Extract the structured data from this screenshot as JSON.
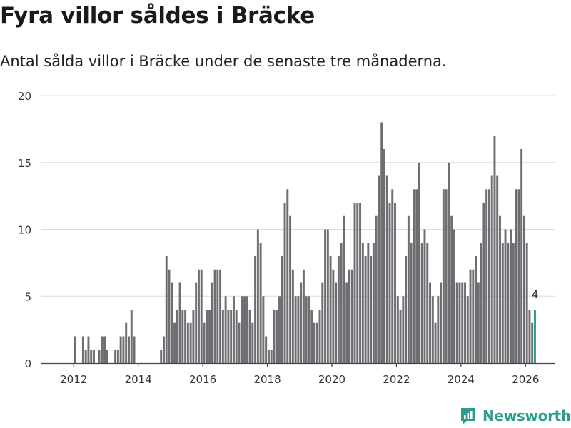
{
  "header": {
    "title": "Fyra villor såldes i Bräcke",
    "subtitle": "Antal sålda villor i Bräcke under de senaste tre månaderna."
  },
  "brand": {
    "name": "Newsworthy",
    "icon": "newsworthy-logo-icon",
    "color": "#2a9d8f"
  },
  "chart_data": {
    "type": "bar",
    "title": "Antal sålda villor i Bräcke under de senaste tre månaderna.",
    "xlabel": "",
    "ylabel": "",
    "ylim": [
      0,
      20
    ],
    "xlim": [
      2011.0,
      2026.9
    ],
    "yticks": [
      0,
      5,
      10,
      15,
      20
    ],
    "xticks": [
      2012,
      2014,
      2016,
      2018,
      2020,
      2022,
      2024,
      2026
    ],
    "bar_color": "#6d6d72",
    "highlight_color": "#2a9d8f",
    "grid": true,
    "series": [
      {
        "name": "Antal sålda villor",
        "start_year": 2012,
        "start_month": 1,
        "values": [
          2,
          0,
          0,
          2,
          1,
          2,
          1,
          1,
          0,
          1,
          2,
          2,
          1,
          0,
          0,
          1,
          1,
          2,
          2,
          3,
          2,
          4,
          2,
          0,
          0,
          0,
          0,
          0,
          0,
          0,
          0,
          0,
          1,
          2,
          8,
          7,
          6,
          3,
          4,
          6,
          4,
          4,
          3,
          3,
          4,
          6,
          7,
          7,
          3,
          4,
          4,
          6,
          7,
          7,
          7,
          4,
          5,
          4,
          4,
          5,
          4,
          3,
          5,
          5,
          5,
          4,
          3,
          8,
          10,
          9,
          5,
          2,
          1,
          1,
          4,
          4,
          5,
          8,
          12,
          13,
          11,
          7,
          5,
          5,
          6,
          7,
          5,
          5,
          4,
          3,
          3,
          4,
          6,
          10,
          10,
          8,
          7,
          6,
          8,
          9,
          11,
          6,
          7,
          7,
          12,
          12,
          12,
          9,
          8,
          9,
          8,
          9,
          11,
          14,
          18,
          16,
          14,
          12,
          13,
          12,
          5,
          4,
          5,
          8,
          11,
          9,
          13,
          13,
          15,
          9,
          10,
          9,
          6,
          5,
          3,
          5,
          6,
          13,
          13,
          15,
          11,
          10,
          6,
          6,
          6,
          6,
          5,
          7,
          7,
          8,
          6,
          9,
          12,
          13,
          13,
          14,
          17,
          14,
          11,
          9,
          10,
          9,
          10,
          9,
          13,
          13,
          16,
          11,
          9,
          4,
          3,
          4
        ],
        "highlight_last": true
      }
    ],
    "annotations": [
      {
        "text": "4",
        "target": "last-bar"
      }
    ]
  }
}
